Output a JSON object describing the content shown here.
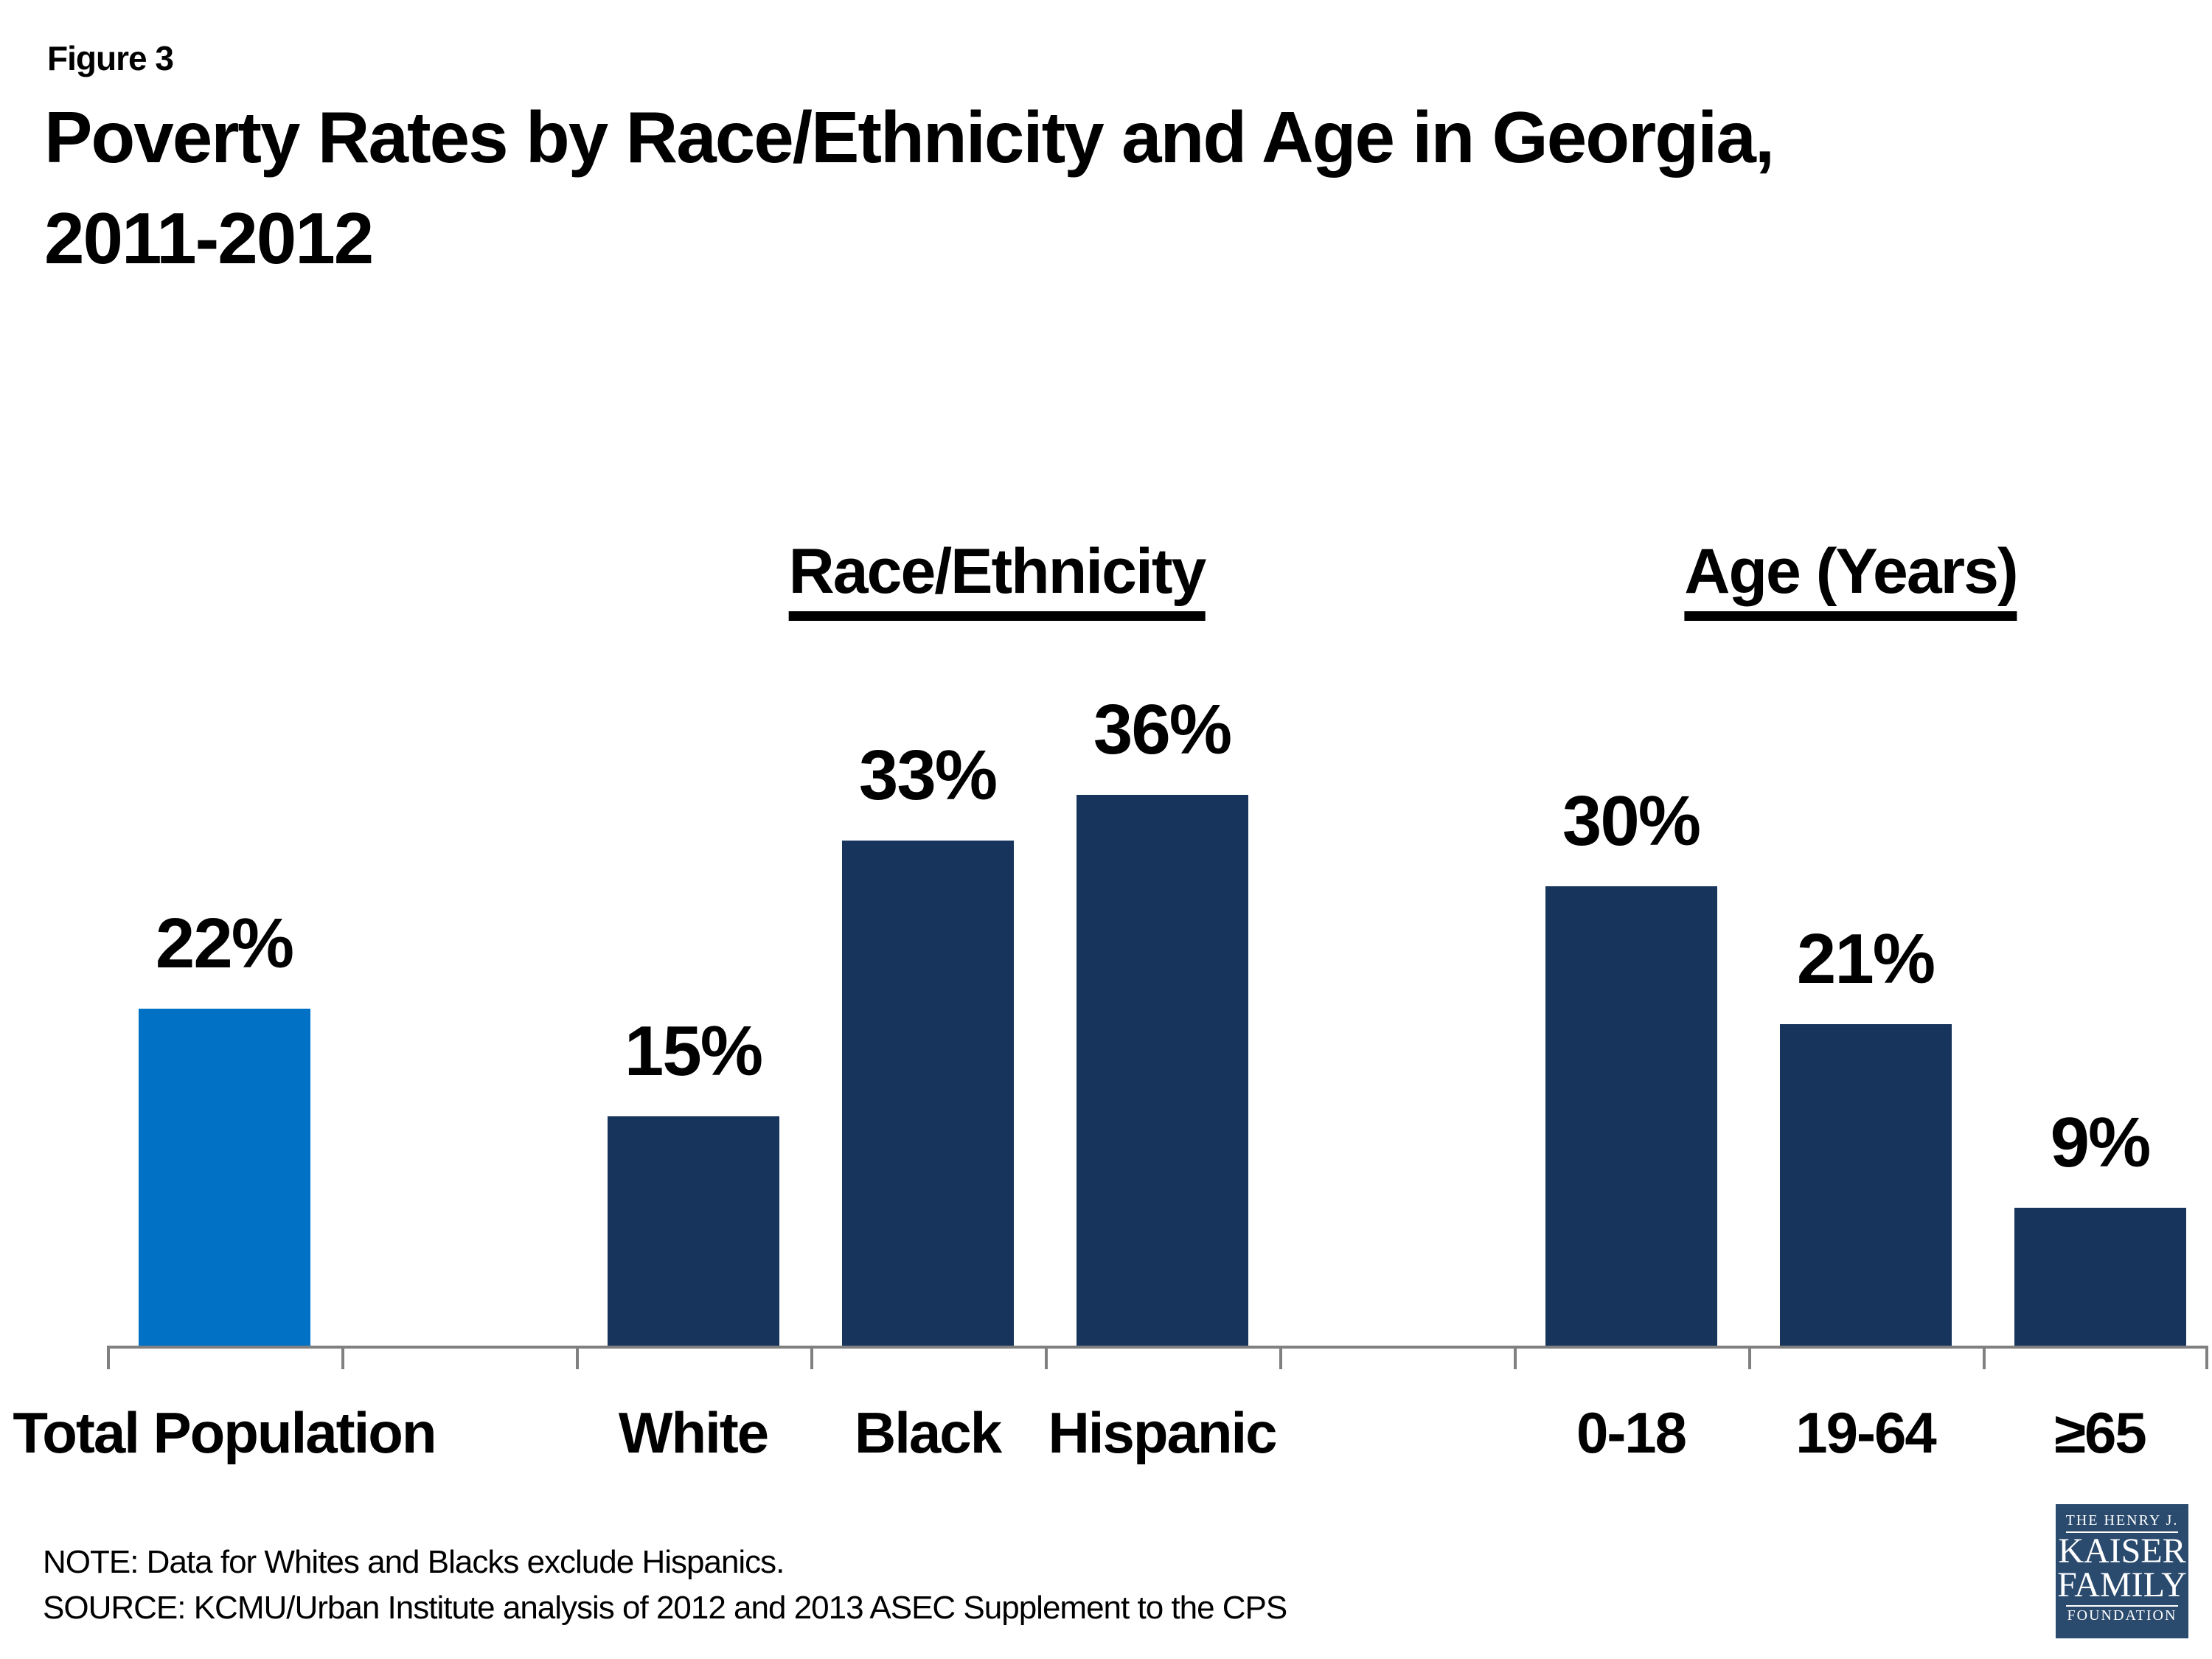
{
  "figure_label": "Figure 3",
  "title_line1": "Poverty Rates by Race/Ethnicity and Age in Georgia,",
  "title_line2": "2011-2012",
  "note": "NOTE: Data for Whites and Blacks exclude Hispanics.",
  "source": "SOURCE: KCMU/Urban Institute analysis of 2012 and 2013 ASEC Supplement to the CPS",
  "logo": {
    "line1": "THE HENRY J.",
    "line2": "KAISER",
    "line3": "FAMILY",
    "line4": "FOUNDATION"
  },
  "colors": {
    "highlight_bar": "#0071C5",
    "dark_bar": "#16345C",
    "axis": "#808080",
    "logo_background": "#2A4A6E",
    "text": "#000000"
  },
  "chart_data": {
    "type": "bar",
    "title": "Poverty Rates by Race/Ethnicity and Age in Georgia, 2011-2012",
    "group_headers": [
      "Race/Ethnicity",
      "Age (Years)"
    ],
    "categories": [
      "Total Population",
      "White",
      "Black",
      "Hispanic",
      "0-18",
      "19-64",
      "≥65"
    ],
    "values": [
      22,
      15,
      33,
      36,
      30,
      21,
      9
    ],
    "labels": [
      "22%",
      "15%",
      "33%",
      "36%",
      "30%",
      "21%",
      "9%"
    ],
    "groups": [
      "",
      "Race/Ethnicity",
      "Race/Ethnicity",
      "Race/Ethnicity",
      "Age (Years)",
      "Age (Years)",
      "Age (Years)"
    ],
    "bar_colors": [
      "#0071C5",
      "#16345C",
      "#16345C",
      "#16345C",
      "#16345C",
      "#16345C",
      "#16345C"
    ],
    "ylim": [
      0,
      40
    ],
    "grid": false,
    "legend": "none",
    "value_label_position": "above-bar",
    "xlabel": "",
    "ylabel": ""
  }
}
